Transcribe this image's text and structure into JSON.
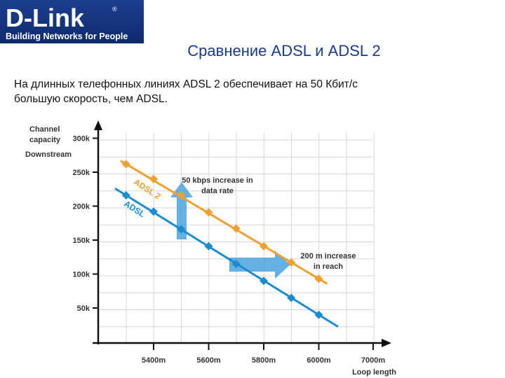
{
  "logo": {
    "brand": "D-Link",
    "registered": "®",
    "tagline": "Building Networks for People"
  },
  "slide": {
    "title": "Сравнение ADSL и ADSL 2",
    "text_line1": "На длинных телефонных линиях  ADSL 2 обеспечивает на 50 Кбит/с",
    "text_line2": "большую скорость, чем ADSL."
  },
  "colors": {
    "adsl2": "#f0a030",
    "adsl": "#1a8ccf",
    "arrow": "#4aa3df",
    "title": "#1a3c8c"
  },
  "chart_data": {
    "type": "line",
    "ylabel_lines": [
      "Channel",
      "capacity",
      "Downstream"
    ],
    "xlabel": "Loop length",
    "x_ticks": [
      "5400m",
      "5600m",
      "5800m",
      "6000m",
      "7000m"
    ],
    "y_ticks": [
      "50k",
      "100k",
      "150k",
      "200k",
      "250k",
      "300k"
    ],
    "grid": true,
    "series": [
      {
        "name": "ADSL 2",
        "color": "#f0a030",
        "points": [
          [
            5300,
            262
          ],
          [
            5400,
            240
          ],
          [
            5500,
            216
          ],
          [
            5600,
            191
          ],
          [
            5700,
            167
          ],
          [
            5800,
            141
          ],
          [
            5900,
            117
          ],
          [
            6000,
            93
          ]
        ]
      },
      {
        "name": "ADSL",
        "color": "#1a8ccf",
        "points": [
          [
            5300,
            216
          ],
          [
            5400,
            192
          ],
          [
            5500,
            166
          ],
          [
            5600,
            141
          ],
          [
            5700,
            115
          ],
          [
            5800,
            90
          ],
          [
            5900,
            65
          ],
          [
            6000,
            40
          ]
        ]
      }
    ],
    "annotations": {
      "rate_lines": [
        "50 kbps increase in",
        "data rate"
      ],
      "reach_lines": [
        "200 m increase",
        "in reach"
      ]
    }
  }
}
